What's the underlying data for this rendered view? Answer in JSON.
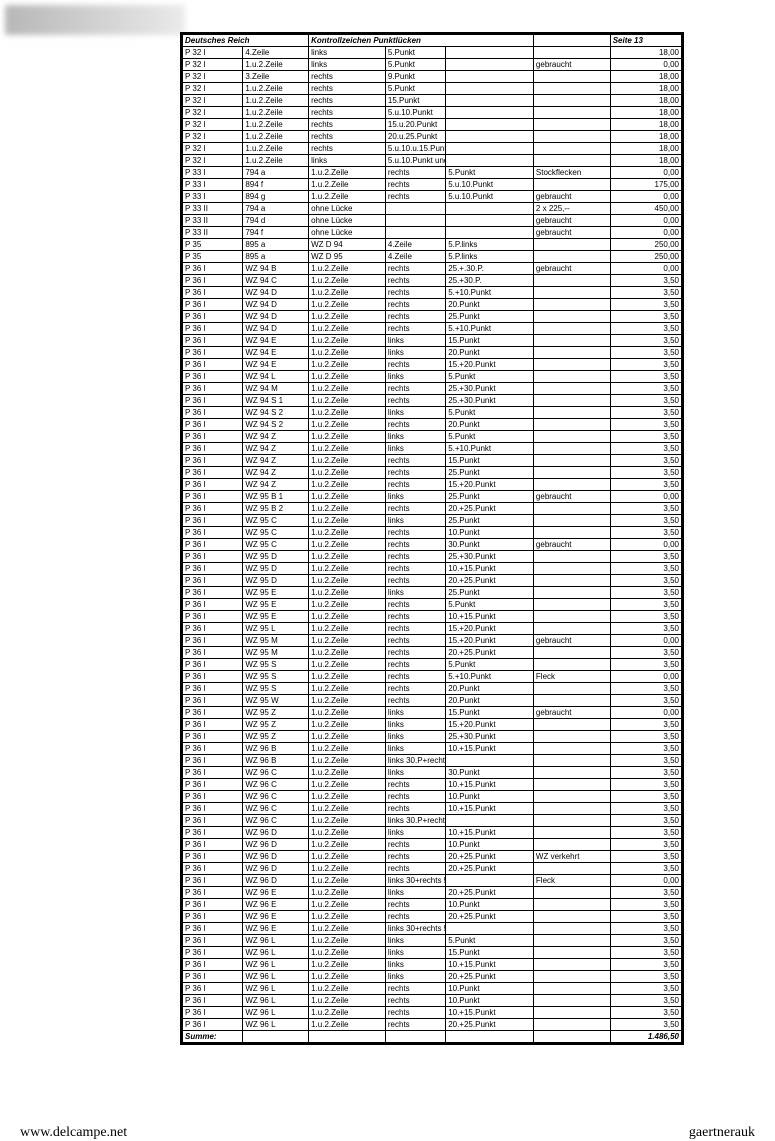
{
  "header": {
    "left": "Deutsches Reich",
    "mid": "Kontrollzeichen Punktlücken",
    "right": "Seite 13"
  },
  "footer": {
    "left": "www.delcampe.net",
    "right": "gaertnerauk"
  },
  "sum_label": "Summe:",
  "sum_value": "1.486,50",
  "rows": [
    [
      "P 32 I",
      "4.Zeile",
      "links",
      "5.Punkt",
      "",
      "",
      "18,00"
    ],
    [
      "P 32 I",
      "1.u.2.Zeile",
      "links",
      "5.Punkt",
      "",
      "gebraucht",
      "0,00"
    ],
    [
      "P 32 I",
      "3.Zeile",
      "rechts",
      "9.Punkt",
      "",
      "",
      "18,00"
    ],
    [
      "P 32 I",
      "1.u.2.Zeile",
      "rechts",
      "5.Punkt",
      "",
      "",
      "18,00"
    ],
    [
      "P 32 I",
      "1.u.2.Zeile",
      "rechts",
      "15.Punkt",
      "",
      "",
      "18,00"
    ],
    [
      "P 32 I",
      "1.u.2.Zeile",
      "rechts",
      "5.u.10.Punkt",
      "",
      "",
      "18,00"
    ],
    [
      "P 32 I",
      "1.u.2.Zeile",
      "rechts",
      "15.u.20.Punkt",
      "",
      "",
      "18,00"
    ],
    [
      "P 32 I",
      "1.u.2.Zeile",
      "rechts",
      "20.u.25.Punkt",
      "",
      "",
      "18,00"
    ],
    [
      "P 32 I",
      "1.u.2.Zeile",
      "rechts",
      "5.u.10.u.15.Punkt",
      "",
      "",
      "18,00"
    ],
    [
      "P 32 I",
      "1.u.2.Zeile",
      "links",
      "5.u.10.Punkt und rechts 30.Punkt",
      "",
      "",
      "18,00"
    ],
    [
      "P 33 I",
      "794 a",
      "1.u.2.Zeile",
      "rechts",
      "5.Punkt",
      "Stockflecken",
      "0,00"
    ],
    [
      "P 33 I",
      "894 f",
      "1.u.2.Zeile",
      "rechts",
      "5.u.10.Punkt",
      "",
      "175,00"
    ],
    [
      "P 33 I",
      "894 g",
      "1.u.2.Zeile",
      "rechts",
      "5.u.10.Punkt",
      "gebraucht",
      "0,00"
    ],
    [
      "P 33 II",
      "794 a",
      "ohne Lücke",
      "",
      "",
      "2 x 225,--",
      "450,00"
    ],
    [
      "P 33 II",
      "794 d",
      "ohne Lücke",
      "",
      "",
      "gebraucht",
      "0,00"
    ],
    [
      "P 33 II",
      "794 f",
      "ohne Lücke",
      "",
      "",
      "gebraucht",
      "0,00"
    ],
    [
      "P 35",
      "895 a",
      "WZ D 94",
      "4.Zeile",
      "5.P.links",
      "",
      "250,00"
    ],
    [
      "P 35",
      "895 a",
      "WZ D 95",
      "4.Zeile",
      "5.P.links",
      "",
      "250,00"
    ],
    [
      "P 36 I",
      "WZ 94 B",
      "1.u.2.Zeile",
      "rechts",
      "25.+.30.P.",
      "gebraucht",
      "0,00"
    ],
    [
      "P 36 I",
      "WZ 94 C",
      "1.u.2.Zeile",
      "rechts",
      "25.+30.P.",
      "",
      "3,50"
    ],
    [
      "P 36 I",
      "WZ 94 D",
      "1.u.2.Zeile",
      "rechts",
      "5.+10.Punkt",
      "",
      "3,50"
    ],
    [
      "P 36 I",
      "WZ 94 D",
      "1.u.2.Zeile",
      "rechts",
      "20.Punkt",
      "",
      "3,50"
    ],
    [
      "P 36 I",
      "WZ 94 D",
      "1.u.2.Zeile",
      "rechts",
      "25.Punkt",
      "",
      "3,50"
    ],
    [
      "P 36 I",
      "WZ 94 D",
      "1.u.2.Zeile",
      "rechts",
      "5.+10.Punkt",
      "",
      "3,50"
    ],
    [
      "P 36 I",
      "WZ 94 E",
      "1.u.2.Zeile",
      "links",
      "15.Punkt",
      "",
      "3,50"
    ],
    [
      "P 36 I",
      "WZ 94 E",
      "1.u.2.Zeile",
      "links",
      "20.Punkt",
      "",
      "3,50"
    ],
    [
      "P 36 I",
      "WZ 94 E",
      "1.u.2.Zeile",
      "rechts",
      "15.+20.Punkt",
      "",
      "3,50"
    ],
    [
      "P 36 I",
      "WZ 94 L",
      "1.u.2.Zeile",
      "links",
      "5.Punkt",
      "",
      "3,50"
    ],
    [
      "P 36 I",
      "WZ 94 M",
      "1.u.2.Zeile",
      "rechts",
      "25.+30.Punkt",
      "",
      "3,50"
    ],
    [
      "P 36 I",
      "WZ 94 S 1",
      "1.u.2.Zeile",
      "rechts",
      "25.+30.Punkt",
      "",
      "3,50"
    ],
    [
      "P 36 I",
      "WZ 94 S 2",
      "1.u.2.Zeile",
      "links",
      "5.Punkt",
      "",
      "3,50"
    ],
    [
      "P 36 I",
      "WZ 94 S 2",
      "1.u.2.Zeile",
      "rechts",
      "20.Punkt",
      "",
      "3,50"
    ],
    [
      "P 36 I",
      "WZ 94 Z",
      "1.u.2.Zeile",
      "links",
      "5.Punkt",
      "",
      "3,50"
    ],
    [
      "P 36 I",
      "WZ 94 Z",
      "1.u.2.Zeile",
      "links",
      "5.+10.Punkt",
      "",
      "3,50"
    ],
    [
      "P 36 I",
      "WZ 94 Z",
      "1.u.2.Zeile",
      "rechts",
      "15.Punkt",
      "",
      "3,50"
    ],
    [
      "P 36 I",
      "WZ 94 Z",
      "1.u.2.Zeile",
      "rechts",
      "25.Punkt",
      "",
      "3,50"
    ],
    [
      "P 36 I",
      "WZ 94 Z",
      "1.u.2.Zeile",
      "rechts",
      "15.+20.Punkt",
      "",
      "3,50"
    ],
    [
      "P 36 I",
      "WZ 95 B 1",
      "1.u.2.Zeile",
      "links",
      "25.Punkt",
      "gebraucht",
      "0,00"
    ],
    [
      "P 36 I",
      "WZ 95 B 2",
      "1.u.2.Zeile",
      "rechts",
      "20.+25.Punkt",
      "",
      "3,50"
    ],
    [
      "P 36 I",
      "WZ 95 C",
      "1.u.2.Zeile",
      "links",
      "25.Punkt",
      "",
      "3,50"
    ],
    [
      "P 36 I",
      "WZ 95 C",
      "1.u.2.Zeile",
      "rechts",
      "10.Punkt",
      "",
      "3,50"
    ],
    [
      "P 36 I",
      "WZ 95 C",
      "1.u.2.Zeile",
      "rechts",
      "30.Punkt",
      "gebraucht",
      "0,00"
    ],
    [
      "P 36 I",
      "WZ 95 D",
      "1.u.2.Zeile",
      "rechts",
      "25.+30.Punkt",
      "",
      "3,50"
    ],
    [
      "P 36 I",
      "WZ 95 D",
      "1.u.2.Zeile",
      "rechts",
      "10.+15.Punkt",
      "",
      "3,50"
    ],
    [
      "P 36 I",
      "WZ 95 D",
      "1.u.2.Zeile",
      "rechts",
      "20.+25.Punkt",
      "",
      "3,50"
    ],
    [
      "P 36 I",
      "WZ 95 E",
      "1.u.2.Zeile",
      "links",
      "25.Punkt",
      "",
      "3,50"
    ],
    [
      "P 36 I",
      "WZ 95 E",
      "1.u.2.Zeile",
      "rechts",
      "5.Punkt",
      "",
      "3,50"
    ],
    [
      "P 36 I",
      "WZ 95 E",
      "1.u.2.Zeile",
      "rechts",
      "10.+15.Punkt",
      "",
      "3,50"
    ],
    [
      "P 36 I",
      "WZ 95 L",
      "1.u.2.Zeile",
      "rechts",
      "15.+20.Punkt",
      "",
      "3,50"
    ],
    [
      "P 36 I",
      "WZ 95 M",
      "1.u.2.Zeile",
      "rechts",
      "15.+20.Punkt",
      "gebraucht",
      "0,00"
    ],
    [
      "P 36 I",
      "WZ 95 M",
      "1.u.2.Zeile",
      "rechts",
      "20.+25.Punkt",
      "",
      "3,50"
    ],
    [
      "P 36 I",
      "WZ 95 S",
      "1.u.2.Zeile",
      "rechts",
      "5.Punkt",
      "",
      "3,50"
    ],
    [
      "P 36 I",
      "WZ 95 S",
      "1.u.2.Zeile",
      "rechts",
      "5.+10.Punkt",
      "Fleck",
      "0,00"
    ],
    [
      "P 36 I",
      "WZ 95 S",
      "1.u.2.Zeile",
      "rechts",
      "20.Punkt",
      "",
      "3,50"
    ],
    [
      "P 36 I",
      "WZ 95 W",
      "1.u.2.Zeile",
      "rechts",
      "20.Punkt",
      "",
      "3,50"
    ],
    [
      "P 36 I",
      "WZ 95 Z",
      "1.u.2.Zeile",
      "links",
      "15.Punkt",
      "gebraucht",
      "0,00"
    ],
    [
      "P 36 I",
      "WZ 95 Z",
      "1.u.2.Zeile",
      "links",
      "15.+20.Punkt",
      "",
      "3,50"
    ],
    [
      "P 36 I",
      "WZ 95 Z",
      "1.u.2.Zeile",
      "links",
      "25.+30.Punkt",
      "",
      "3,50"
    ],
    [
      "P 36 I",
      "WZ 96 B",
      "1.u.2.Zeile",
      "links",
      "10.+15.Punkt",
      "",
      "3,50"
    ],
    [
      "P 36 I",
      "WZ 96 B",
      "1.u.2.Zeile",
      "links 30.P+rechts 5.Punkt",
      "",
      "",
      "3,50"
    ],
    [
      "P 36 I",
      "WZ 96 C",
      "1.u.2.Zeile",
      "links",
      "30.Punkt",
      "",
      "3,50"
    ],
    [
      "P 36 I",
      "WZ 96 C",
      "1.u.2.Zeile",
      "rechts",
      "10.+15.Punkt",
      "",
      "3,50"
    ],
    [
      "P 36 I",
      "WZ 96 C",
      "1.u.2.Zeile",
      "rechts",
      "10.Punkt",
      "",
      "3,50"
    ],
    [
      "P 36 I",
      "WZ 96 C",
      "1.u.2.Zeile",
      "rechts",
      "10.+15.Punkt",
      "",
      "3,50"
    ],
    [
      "P 36 I",
      "WZ 96 C",
      "1.u.2.Zeile",
      "links 30.P+rechts 5.Punkt",
      "",
      "",
      "3,50"
    ],
    [
      "P 36 I",
      "WZ 96 D",
      "1.u.2.Zeile",
      "links",
      "10.+15.Punkt",
      "",
      "3,50"
    ],
    [
      "P 36 I",
      "WZ 96 D",
      "1.u.2.Zeile",
      "rechts",
      "10.Punkt",
      "",
      "3,50"
    ],
    [
      "P 36 I",
      "WZ 96 D",
      "1.u.2.Zeile",
      "rechts",
      "20.+25.Punkt",
      "WZ verkehrt",
      "3,50"
    ],
    [
      "P 36 I",
      "WZ 96 D",
      "1.u.2.Zeile",
      "rechts",
      "20.+25.Punkt",
      "",
      "3,50"
    ],
    [
      "P 36 I",
      "WZ 96 D",
      "1.u.2.Zeile",
      "links 30+rechts 5.Punkt",
      "",
      "Fleck",
      "0,00"
    ],
    [
      "P 36 I",
      "WZ 96 E",
      "1.u.2.Zeile",
      "links",
      "20.+25.Punkt",
      "",
      "3,50"
    ],
    [
      "P 36 I",
      "WZ 96 E",
      "1.u.2.Zeile",
      "rechts",
      "10.Punkt",
      "",
      "3,50"
    ],
    [
      "P 36 I",
      "WZ 96 E",
      "1.u.2.Zeile",
      "rechts",
      "20.+25.Punkt",
      "",
      "3,50"
    ],
    [
      "P 36 I",
      "WZ 96 E",
      "1.u.2.Zeile",
      "links 30+rechts 5.Punkt",
      "",
      "",
      "3,50"
    ],
    [
      "P 36 I",
      "WZ 96 L",
      "1.u.2.Zeile",
      "links",
      "5.Punkt",
      "",
      "3,50"
    ],
    [
      "P 36 I",
      "WZ 96 L",
      "1.u.2.Zeile",
      "links",
      "15.Punkt",
      "",
      "3,50"
    ],
    [
      "P 36 I",
      "WZ 96 L",
      "1.u.2.Zeile",
      "links",
      "10.+15.Punkt",
      "",
      "3,50"
    ],
    [
      "P 36 I",
      "WZ 96 L",
      "1.u.2.Zeile",
      "links",
      "20.+25.Punkt",
      "",
      "3,50"
    ],
    [
      "P 36 I",
      "WZ 96 L",
      "1.u.2.Zeile",
      "rechts",
      "10.Punkt",
      "",
      "3,50"
    ],
    [
      "P 36 I",
      "WZ 96 L",
      "1.u.2.Zeile",
      "rechts",
      "10.Punkt",
      "",
      "3,50"
    ],
    [
      "P 36 I",
      "WZ 96 L",
      "1.u.2.Zeile",
      "rechts",
      "10.+15.Punkt",
      "",
      "3,50"
    ],
    [
      "P 36 I",
      "WZ 96 L",
      "1.u.2.Zeile",
      "rechts",
      "20.+25.Punkt",
      "",
      "3,50"
    ]
  ]
}
